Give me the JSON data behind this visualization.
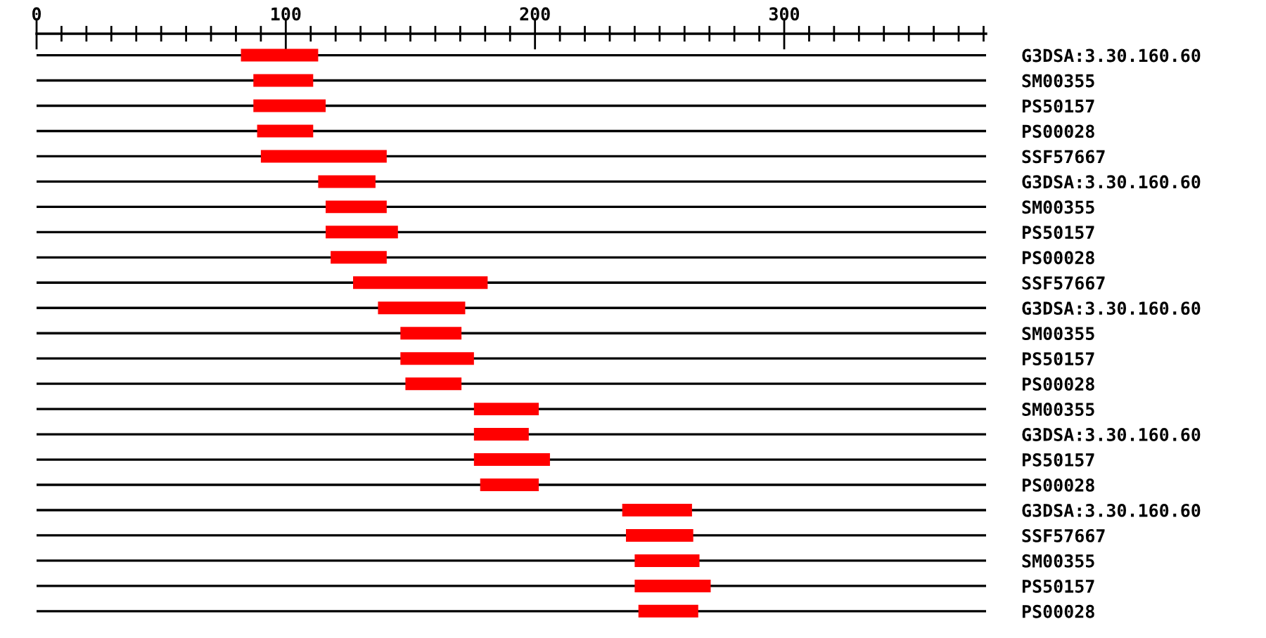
{
  "chart_data": {
    "type": "bar",
    "orientation": "horizontal",
    "categories": [
      "G3DSA:3.30.160.60",
      "SM00355",
      "PS50157",
      "PS00028",
      "SSF57667",
      "G3DSA:3.30.160.60",
      "SM00355",
      "PS50157",
      "PS00028",
      "SSF57667",
      "G3DSA:3.30.160.60",
      "SM00355",
      "PS50157",
      "PS00028",
      "SM00355",
      "G3DSA:3.30.160.60",
      "PS50157",
      "PS00028",
      "G3DSA:3.30.160.60",
      "SSF57667",
      "SM00355",
      "PS50157",
      "PS00028"
    ],
    "base": [
      82,
      87,
      87,
      88.5,
      90,
      113,
      116,
      116,
      118,
      127,
      137,
      146,
      146,
      148,
      175.5,
      175.5,
      175.5,
      178,
      235,
      236.5,
      240,
      240,
      241.5
    ],
    "values": [
      31,
      24,
      29,
      22.5,
      50.5,
      23,
      24.5,
      29,
      22.5,
      54,
      35,
      24.5,
      29.5,
      22.5,
      26,
      22,
      30.5,
      23.5,
      28,
      27,
      26,
      30.5,
      24
    ],
    "color": "#ff0000",
    "xlim": [
      0,
      381
    ],
    "xticks": [
      0,
      {
        "value": 10,
        "label": null
      },
      {
        "value": 20,
        "label": null
      },
      {
        "value": 30,
        "label": null
      },
      {
        "value": 40,
        "label": null
      },
      {
        "value": 50,
        "label": null
      },
      {
        "value": 60,
        "label": null
      },
      {
        "value": 70,
        "label": null
      },
      {
        "value": 80,
        "label": null
      },
      {
        "value": 90,
        "label": null
      },
      100,
      {
        "value": 110,
        "label": null
      },
      {
        "value": 120,
        "label": null
      },
      {
        "value": 130,
        "label": null
      },
      {
        "value": 140,
        "label": null
      },
      {
        "value": 150,
        "label": null
      },
      {
        "value": 160,
        "label": null
      },
      {
        "value": 170,
        "label": null
      },
      {
        "value": 180,
        "label": null
      },
      {
        "value": 190,
        "label": null
      },
      200,
      {
        "value": 210,
        "label": null
      },
      {
        "value": 220,
        "label": null
      },
      {
        "value": 230,
        "label": null
      },
      {
        "value": 240,
        "label": null
      },
      {
        "value": 250,
        "label": null
      },
      {
        "value": 260,
        "label": null
      },
      {
        "value": 270,
        "label": null
      },
      {
        "value": 280,
        "label": null
      },
      {
        "value": 290,
        "label": null
      },
      300,
      {
        "value": 310,
        "label": null
      },
      {
        "value": 320,
        "label": null
      },
      {
        "value": 330,
        "label": null
      },
      {
        "value": 340,
        "label": null
      },
      {
        "value": 350,
        "label": null
      },
      {
        "value": 360,
        "label": null
      },
      {
        "value": 370,
        "label": null
      },
      {
        "value": 380,
        "label": null
      }
    ],
    "grid": "y"
  }
}
